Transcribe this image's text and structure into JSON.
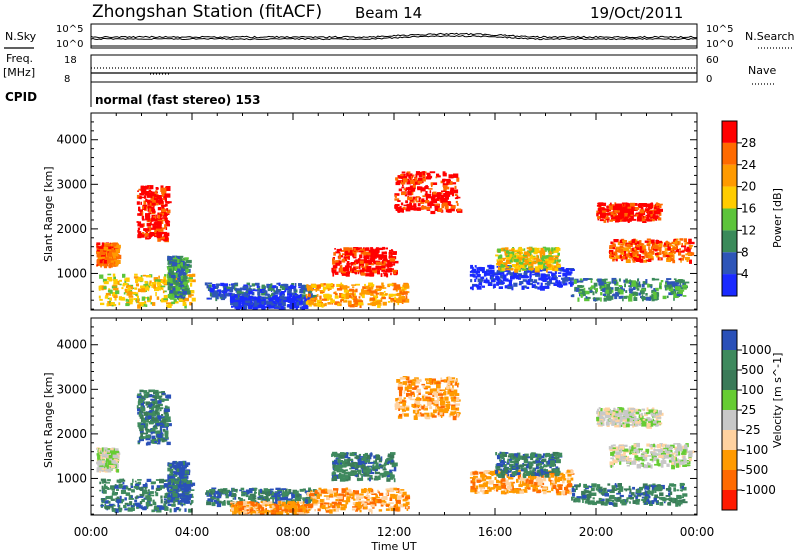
{
  "header": {
    "station": "Zhongshan Station (fitACF)",
    "beam": "Beam 14",
    "date": "19/Oct/2011"
  },
  "status_panels": {
    "nsky_label": "N.Sky",
    "nsky_ticks": [
      "10^5",
      "10^0"
    ],
    "nsearch_label": "N.Search",
    "nsearch_ticks": [
      "10^5",
      "10^0"
    ],
    "freq_label": "Freq.",
    "freq_unit": "[MHz]",
    "freq_ticks": [
      "18",
      "8"
    ],
    "nave_label": "Nave",
    "nave_ticks": [
      "60",
      "0"
    ],
    "cpid_label": "CPID",
    "cpid_value": "normal (fast stereo) 153"
  },
  "chart_data": [
    {
      "type": "heatmap",
      "name": "power",
      "xlabel": "Time UT",
      "ylabel": "Slant Range [km]",
      "x_ticks": [
        "00:00",
        "04:00",
        "08:00",
        "12:00",
        "16:00",
        "20:00",
        "00:00"
      ],
      "x_range_hours": [
        0,
        24
      ],
      "y_ticks": [
        1000,
        2000,
        3000,
        4000
      ],
      "ylim": [
        180,
        4600
      ],
      "colorbar": {
        "label": "Power [dB]",
        "ticks": [
          "28",
          "24",
          "20",
          "16",
          "12",
          "8",
          "4"
        ],
        "colors": [
          "#ff0000",
          "#ff6a00",
          "#ff9a00",
          "#ffcc00",
          "#5cc43a",
          "#3a8a5a",
          "#2e55b8",
          "#1a2aff"
        ]
      },
      "regions": [
        {
          "t": [
            0.2,
            1.0
          ],
          "r": [
            1200,
            1700
          ],
          "level": 1
        },
        {
          "t": [
            0.3,
            4.0
          ],
          "r": [
            300,
            1000
          ],
          "level": 3
        },
        {
          "t": [
            1.8,
            3.0
          ],
          "r": [
            1800,
            3000
          ],
          "level": 0
        },
        {
          "t": [
            3.0,
            3.8
          ],
          "r": [
            500,
            1400
          ],
          "level": 5
        },
        {
          "t": [
            4.5,
            8.8
          ],
          "r": [
            450,
            800
          ],
          "level": 6
        },
        {
          "t": [
            5.5,
            8.5
          ],
          "r": [
            250,
            500
          ],
          "level": 7
        },
        {
          "t": [
            8.5,
            12.5
          ],
          "r": [
            300,
            800
          ],
          "level": 2
        },
        {
          "t": [
            9.5,
            12.0
          ],
          "r": [
            1000,
            1600
          ],
          "level": 0
        },
        {
          "t": [
            12.0,
            14.5
          ],
          "r": [
            2400,
            3300
          ],
          "level": 0
        },
        {
          "t": [
            15.0,
            19.0
          ],
          "r": [
            700,
            1200
          ],
          "level": 7
        },
        {
          "t": [
            16.0,
            18.5
          ],
          "r": [
            1100,
            1600
          ],
          "level": 3
        },
        {
          "t": [
            19.0,
            23.5
          ],
          "r": [
            450,
            900
          ],
          "level": 5
        },
        {
          "t": [
            20.5,
            23.7
          ],
          "r": [
            1300,
            1800
          ],
          "level": 1
        },
        {
          "t": [
            20.0,
            22.5
          ],
          "r": [
            2200,
            2600
          ],
          "level": 0
        }
      ]
    },
    {
      "type": "heatmap",
      "name": "velocity",
      "xlabel": "Time UT",
      "ylabel": "Slant Range [km]",
      "x_ticks": [
        "00:00",
        "04:00",
        "08:00",
        "12:00",
        "16:00",
        "20:00",
        "00:00"
      ],
      "x_range_hours": [
        0,
        24
      ],
      "y_ticks": [
        1000,
        2000,
        3000,
        4000
      ],
      "ylim": [
        180,
        4600
      ],
      "colorbar": {
        "label": "Velocity [m s^-1]",
        "ticks": [
          "1000",
          "500",
          "100",
          "25",
          "-25",
          "-100",
          "-500",
          "-1000"
        ],
        "colors": [
          "#2a50b8",
          "#3f8a5e",
          "#3a7a58",
          "#66cc33",
          "#c8c8c8",
          "#ffd2a0",
          "#ff9a00",
          "#ff6a00",
          "#ff1a00"
        ]
      },
      "regions": [
        {
          "t": [
            0.2,
            1.0
          ],
          "r": [
            1200,
            1700
          ],
          "level": 4
        },
        {
          "t": [
            0.3,
            4.0
          ],
          "r": [
            300,
            1000
          ],
          "level": 1
        },
        {
          "t": [
            1.8,
            3.0
          ],
          "r": [
            1800,
            3000
          ],
          "level": 1
        },
        {
          "t": [
            3.0,
            3.8
          ],
          "r": [
            500,
            1400
          ],
          "level": 0
        },
        {
          "t": [
            4.5,
            8.8
          ],
          "r": [
            450,
            800
          ],
          "level": 1
        },
        {
          "t": [
            5.5,
            8.5
          ],
          "r": [
            250,
            500
          ],
          "level": 6
        },
        {
          "t": [
            8.5,
            12.5
          ],
          "r": [
            300,
            800
          ],
          "level": 6
        },
        {
          "t": [
            9.5,
            12.0
          ],
          "r": [
            1000,
            1600
          ],
          "level": 1
        },
        {
          "t": [
            12.0,
            14.5
          ],
          "r": [
            2400,
            3300
          ],
          "level": 6
        },
        {
          "t": [
            15.0,
            19.0
          ],
          "r": [
            700,
            1200
          ],
          "level": 6
        },
        {
          "t": [
            16.0,
            18.5
          ],
          "r": [
            1100,
            1600
          ],
          "level": 1
        },
        {
          "t": [
            19.0,
            23.5
          ],
          "r": [
            450,
            900
          ],
          "level": 1
        },
        {
          "t": [
            20.5,
            23.7
          ],
          "r": [
            1300,
            1800
          ],
          "level": 4
        },
        {
          "t": [
            20.0,
            22.5
          ],
          "r": [
            2200,
            2600
          ],
          "level": 4
        }
      ]
    }
  ]
}
